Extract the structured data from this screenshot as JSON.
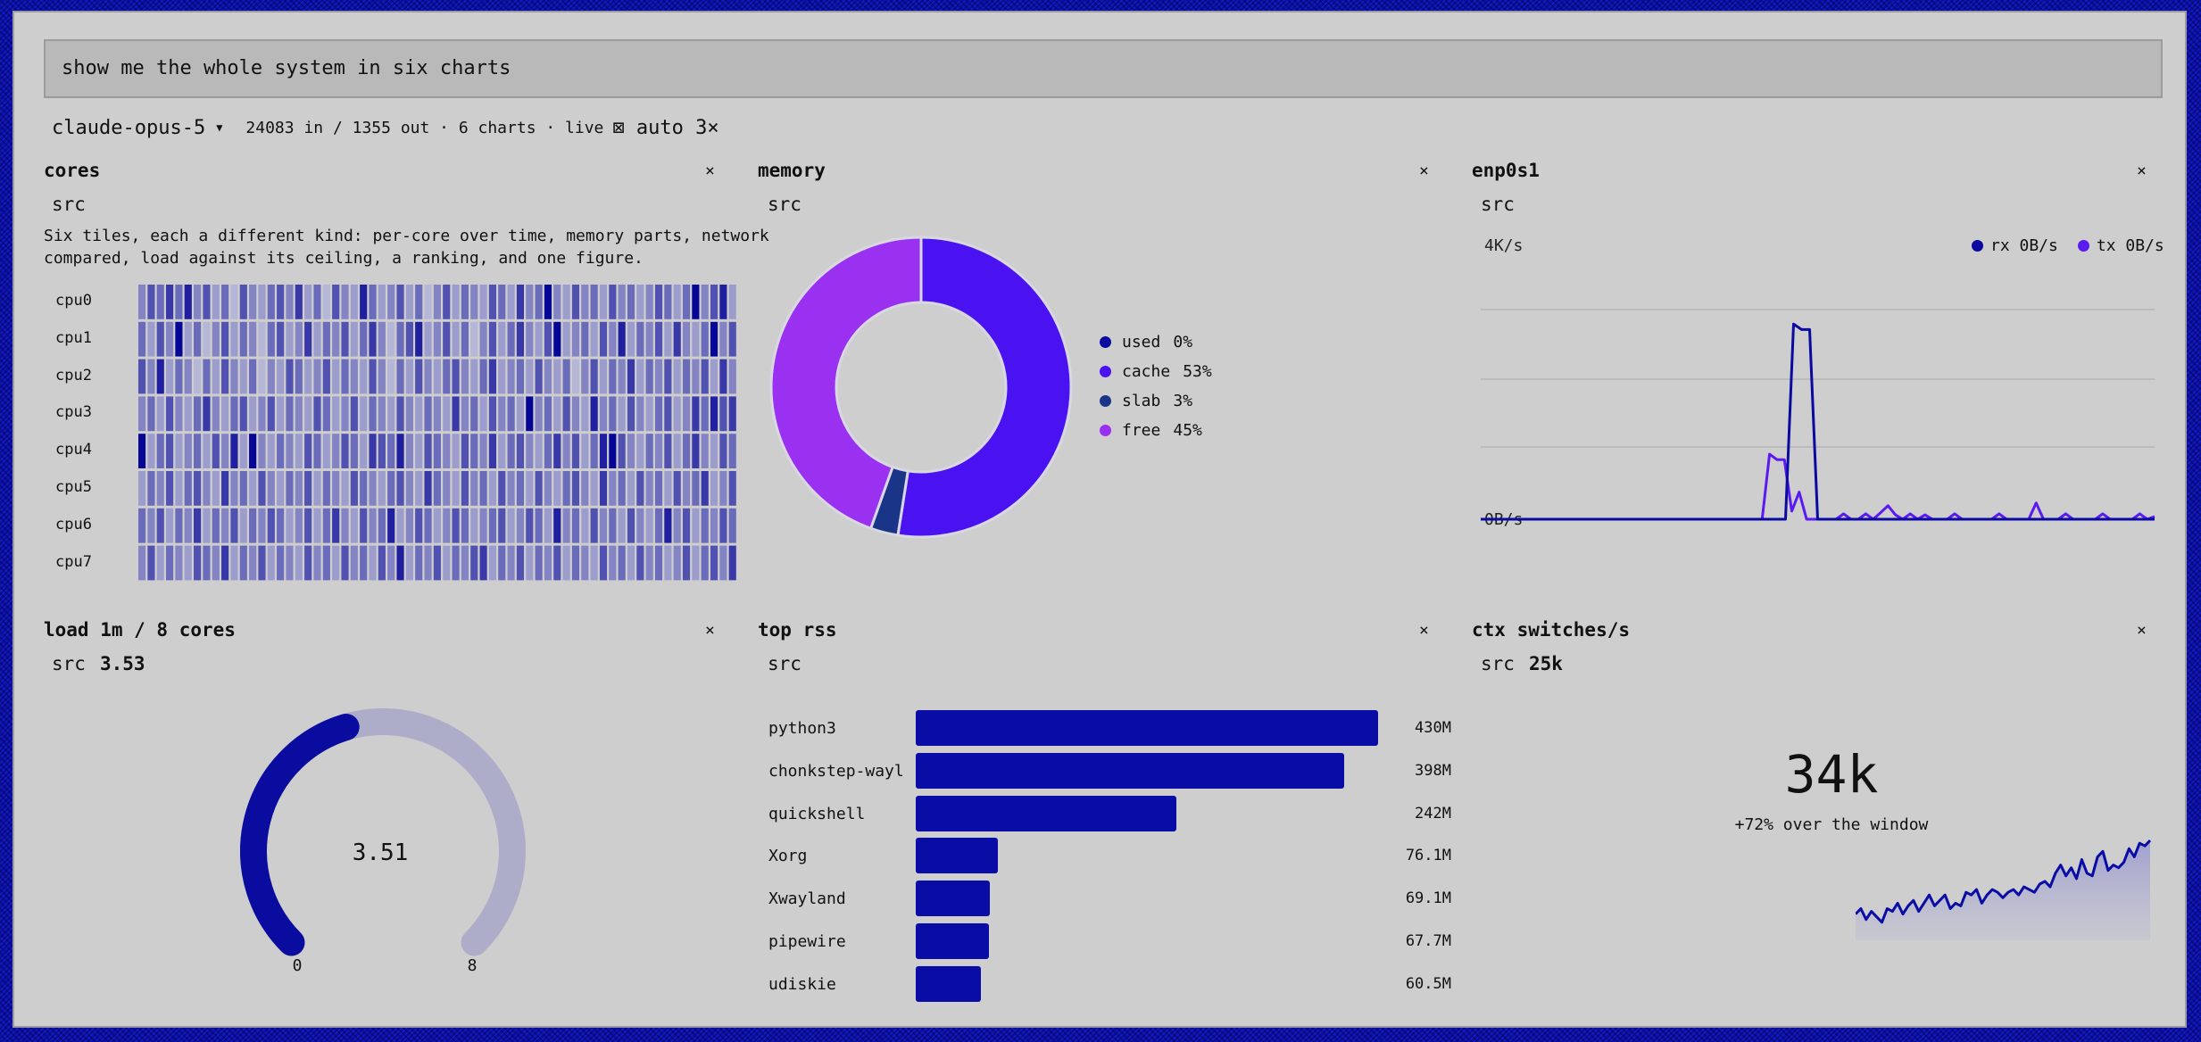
{
  "prompt": {
    "text": "show me the whole system in six charts"
  },
  "status": {
    "model": "claude-opus-5",
    "stats": "24083 in / 1355 out · 6 charts · live",
    "auto_label": "⊠ auto 3×"
  },
  "tiles": {
    "cores": {
      "title": "cores",
      "src": "src",
      "close": "×",
      "description": "Six tiles, each a different kind: per-core over time, memory parts, network compared, load against its ceiling, a ranking, and one figure.",
      "cpus": [
        "cpu0",
        "cpu1",
        "cpu2",
        "cpu3",
        "cpu4",
        "cpu5",
        "cpu6",
        "cpu7"
      ]
    },
    "memory": {
      "title": "memory",
      "src": "src",
      "close": "×",
      "legend": [
        {
          "name": "used",
          "pct": "0%",
          "color": "#0a0aa0"
        },
        {
          "name": "cache",
          "pct": "53%",
          "color": "#4a12f0"
        },
        {
          "name": "slab",
          "pct": "3%",
          "color": "#1a3488"
        },
        {
          "name": "free",
          "pct": "45%",
          "color": "#9a30f0"
        }
      ]
    },
    "network": {
      "title": "enp0s1",
      "src": "src",
      "close": "×",
      "y_top_label": "4K/s",
      "y_bottom_label": "0B/s",
      "legend": [
        {
          "name": "rx 0B/s",
          "color": "#0a0aa0"
        },
        {
          "name": "tx 0B/s",
          "color": "#5a1af0"
        }
      ]
    },
    "load": {
      "title": "load 1m / 8 cores",
      "src": "src",
      "src_value": "3.53",
      "close": "×",
      "gauge_value_label": "3.51",
      "min_label": "0",
      "max_label": "8"
    },
    "rss": {
      "title": "top rss",
      "src": "src",
      "close": "×",
      "processes": [
        {
          "name": "python3",
          "value_label": "430M"
        },
        {
          "name": "chonkstep-wayl",
          "value_label": "398M"
        },
        {
          "name": "quickshell",
          "value_label": "242M"
        },
        {
          "name": "Xorg",
          "value_label": "76.1M"
        },
        {
          "name": "Xwayland",
          "value_label": "69.1M"
        },
        {
          "name": "pipewire",
          "value_label": "67.7M"
        },
        {
          "name": "udiskie",
          "value_label": "60.5M"
        }
      ]
    },
    "ctx": {
      "title": "ctx switches/s",
      "src": "src",
      "src_value": "25k",
      "close": "×",
      "big_value": "34k",
      "subtitle": "+72% over the window"
    }
  },
  "chart_data": [
    {
      "type": "heatmap",
      "rows": [
        "cpu0",
        "cpu1",
        "cpu2",
        "cpu3",
        "cpu4",
        "cpu5",
        "cpu6",
        "cpu7"
      ],
      "values": [
        [
          0.4,
          0.6,
          0.5,
          0.7,
          0.5,
          0.8,
          0.4,
          0.6,
          0.3,
          0.5,
          0.2,
          0.6,
          0.4,
          0.3,
          0.5,
          0.6,
          0.4,
          0.7,
          0.3,
          0.5,
          0.2,
          0.6,
          0.4,
          0.3,
          0.8,
          0.5,
          0.3,
          0.4,
          0.6,
          0.3,
          0.5,
          0.2,
          0.4,
          0.6,
          0.3,
          0.5,
          0.4,
          0.3,
          0.6,
          0.5,
          0.3,
          0.7,
          0.4,
          0.5,
          0.9,
          0.4,
          0.3,
          0.6,
          0.4,
          0.5,
          0.3,
          0.6,
          0.4,
          0.5,
          0.3,
          0.4,
          0.6,
          0.5,
          0.3,
          0.5,
          0.9,
          0.4,
          0.6,
          0.8,
          0.3
        ],
        [
          0.5,
          0.3,
          0.6,
          0.4,
          0.9,
          0.3,
          0.5,
          0.2,
          0.4,
          0.6,
          0.3,
          0.5,
          0.4,
          0.2,
          0.5,
          0.6,
          0.3,
          0.4,
          0.7,
          0.3,
          0.5,
          0.4,
          0.6,
          0.3,
          0.5,
          0.7,
          0.4,
          0.2,
          0.5,
          0.6,
          0.8,
          0.3,
          0.4,
          0.6,
          0.3,
          0.5,
          0.2,
          0.4,
          0.6,
          0.3,
          0.5,
          0.7,
          0.4,
          0.3,
          0.6,
          0.9,
          0.3,
          0.4,
          0.5,
          0.3,
          0.6,
          0.4,
          0.8,
          0.3,
          0.5,
          0.4,
          0.6,
          0.3,
          0.7,
          0.4,
          0.3,
          0.5,
          0.9,
          0.4,
          0.6
        ],
        [
          0.6,
          0.4,
          0.8,
          0.3,
          0.5,
          0.4,
          0.2,
          0.5,
          0.3,
          0.6,
          0.4,
          0.3,
          0.5,
          0.2,
          0.4,
          0.3,
          0.6,
          0.5,
          0.3,
          0.4,
          0.6,
          0.3,
          0.5,
          0.4,
          0.3,
          0.6,
          0.4,
          0.2,
          0.5,
          0.3,
          0.6,
          0.4,
          0.3,
          0.5,
          0.6,
          0.4,
          0.3,
          0.5,
          0.7,
          0.3,
          0.4,
          0.5,
          0.3,
          0.6,
          0.4,
          0.3,
          0.5,
          0.2,
          0.4,
          0.6,
          0.3,
          0.5,
          0.4,
          0.7,
          0.3,
          0.5,
          0.4,
          0.6,
          0.3,
          0.5,
          0.4,
          0.6,
          0.3,
          0.7,
          0.4
        ],
        [
          0.4,
          0.5,
          0.3,
          0.6,
          0.4,
          0.3,
          0.5,
          0.7,
          0.4,
          0.3,
          0.5,
          0.6,
          0.3,
          0.4,
          0.6,
          0.3,
          0.5,
          0.4,
          0.3,
          0.6,
          0.5,
          0.3,
          0.4,
          0.6,
          0.3,
          0.5,
          0.4,
          0.3,
          0.6,
          0.4,
          0.3,
          0.5,
          0.4,
          0.3,
          0.7,
          0.4,
          0.5,
          0.3,
          0.6,
          0.4,
          0.5,
          0.3,
          0.9,
          0.4,
          0.5,
          0.3,
          0.6,
          0.4,
          0.3,
          0.8,
          0.4,
          0.5,
          0.3,
          0.6,
          0.4,
          0.3,
          0.5,
          0.6,
          0.3,
          0.4,
          0.7,
          0.5,
          0.8,
          0.6,
          0.7
        ],
        [
          0.9,
          0.3,
          0.5,
          0.6,
          0.3,
          0.4,
          0.5,
          0.3,
          0.6,
          0.4,
          0.8,
          0.3,
          0.9,
          0.4,
          0.3,
          0.5,
          0.4,
          0.3,
          0.6,
          0.5,
          0.3,
          0.4,
          0.6,
          0.5,
          0.3,
          0.7,
          0.6,
          0.5,
          0.8,
          0.4,
          0.3,
          0.6,
          0.5,
          0.4,
          0.3,
          0.6,
          0.5,
          0.4,
          0.7,
          0.3,
          0.5,
          0.6,
          0.4,
          0.3,
          0.5,
          0.7,
          0.4,
          0.6,
          0.3,
          0.5,
          0.8,
          0.9,
          0.6,
          0.4,
          0.3,
          0.5,
          0.4,
          0.6,
          0.3,
          0.5,
          0.7,
          0.4,
          0.3,
          0.6,
          0.5
        ],
        [
          0.3,
          0.5,
          0.4,
          0.6,
          0.3,
          0.5,
          0.6,
          0.4,
          0.3,
          0.7,
          0.4,
          0.5,
          0.3,
          0.6,
          0.4,
          0.3,
          0.5,
          0.4,
          0.6,
          0.3,
          0.5,
          0.4,
          0.3,
          0.6,
          0.5,
          0.4,
          0.3,
          0.5,
          0.6,
          0.4,
          0.3,
          0.7,
          0.5,
          0.4,
          0.3,
          0.6,
          0.4,
          0.5,
          0.3,
          0.6,
          0.4,
          0.5,
          0.3,
          0.6,
          0.4,
          0.3,
          0.5,
          0.6,
          0.4,
          0.3,
          0.7,
          0.4,
          0.5,
          0.3,
          0.6,
          0.4,
          0.5,
          0.3,
          0.6,
          0.4,
          0.5,
          0.7,
          0.3,
          0.4,
          0.6
        ],
        [
          0.5,
          0.4,
          0.6,
          0.3,
          0.5,
          0.4,
          0.7,
          0.3,
          0.5,
          0.4,
          0.6,
          0.3,
          0.5,
          0.4,
          0.6,
          0.5,
          0.3,
          0.4,
          0.6,
          0.3,
          0.5,
          0.7,
          0.4,
          0.3,
          0.6,
          0.4,
          0.5,
          0.8,
          0.3,
          0.4,
          0.6,
          0.5,
          0.3,
          0.4,
          0.6,
          0.5,
          0.3,
          0.4,
          0.5,
          0.6,
          0.3,
          0.4,
          0.6,
          0.5,
          0.3,
          0.8,
          0.4,
          0.5,
          0.3,
          0.6,
          0.4,
          0.5,
          0.3,
          0.6,
          0.4,
          0.3,
          0.5,
          0.8,
          0.4,
          0.6,
          0.3,
          0.5,
          0.4,
          0.6,
          0.5
        ],
        [
          0.4,
          0.6,
          0.3,
          0.5,
          0.4,
          0.3,
          0.6,
          0.5,
          0.4,
          0.7,
          0.3,
          0.5,
          0.4,
          0.6,
          0.3,
          0.5,
          0.4,
          0.3,
          0.6,
          0.4,
          0.5,
          0.3,
          0.6,
          0.4,
          0.5,
          0.3,
          0.6,
          0.4,
          0.8,
          0.3,
          0.5,
          0.4,
          0.6,
          0.3,
          0.5,
          0.4,
          0.6,
          0.7,
          0.3,
          0.5,
          0.4,
          0.6,
          0.3,
          0.5,
          0.4,
          0.6,
          0.3,
          0.5,
          0.4,
          0.3,
          0.6,
          0.4,
          0.5,
          0.3,
          0.6,
          0.4,
          0.5,
          0.3,
          0.4,
          0.6,
          0.3,
          0.5,
          0.6,
          0.4,
          0.7
        ]
      ]
    },
    {
      "type": "pie",
      "labels": [
        "used",
        "cache",
        "slab",
        "free"
      ],
      "values": [
        0,
        53,
        3,
        45
      ]
    },
    {
      "type": "line",
      "ylim": [
        0,
        4000
      ],
      "series": [
        {
          "name": "rx 0B/s",
          "values": [
            0,
            0,
            0,
            0,
            0,
            0,
            0,
            0,
            0,
            0,
            0,
            0,
            0,
            0,
            0,
            0,
            0,
            0,
            0,
            0,
            0,
            0,
            0,
            0,
            0,
            0,
            0,
            0,
            0,
            0,
            0,
            0,
            0,
            0,
            0,
            0,
            0,
            0,
            0,
            3600,
            3500,
            3500,
            0,
            0,
            0,
            0,
            0,
            0,
            0,
            0,
            0,
            0,
            0,
            0,
            0,
            0,
            0,
            0,
            0,
            0,
            0,
            0,
            0,
            0,
            0,
            0,
            0,
            0,
            0,
            0,
            0,
            0,
            0,
            0,
            0,
            0,
            0,
            0,
            0,
            0,
            0,
            0,
            0,
            0,
            0
          ]
        },
        {
          "name": "tx 0B/s",
          "values": [
            0,
            0,
            0,
            0,
            0,
            0,
            0,
            0,
            0,
            0,
            0,
            0,
            0,
            0,
            0,
            0,
            0,
            0,
            0,
            0,
            0,
            0,
            0,
            0,
            0,
            0,
            0,
            0,
            0,
            0,
            0,
            0,
            0,
            0,
            0,
            0,
            0,
            0,
            0,
            1200,
            1100,
            1100,
            150,
            500,
            0,
            0,
            0,
            0,
            0,
            100,
            0,
            0,
            100,
            0,
            120,
            250,
            80,
            0,
            100,
            0,
            80,
            0,
            0,
            0,
            100,
            0,
            0,
            0,
            0,
            0,
            100,
            0,
            0,
            0,
            0,
            300,
            0,
            0,
            0,
            100,
            0,
            0,
            0,
            0,
            100,
            0,
            0,
            0,
            0,
            100,
            0,
            50
          ]
        }
      ]
    },
    {
      "type": "gauge",
      "value": 3.51,
      "min": 0,
      "max": 8
    },
    {
      "type": "bar",
      "categories": [
        "python3",
        "chonkstep-wayl",
        "quickshell",
        "Xorg",
        "Xwayland",
        "pipewire",
        "udiskie"
      ],
      "values": [
        430,
        398,
        242,
        76.1,
        69.1,
        67.7,
        60.5
      ]
    },
    {
      "type": "area",
      "values": [
        26,
        28,
        24,
        27,
        25,
        23,
        28,
        27,
        30,
        26,
        29,
        31,
        27,
        30,
        33,
        29,
        31,
        33,
        28,
        30,
        29,
        34,
        33,
        35,
        30,
        33,
        35,
        34,
        32,
        34,
        35,
        33,
        36,
        35,
        34,
        37,
        38,
        36,
        41,
        44,
        40,
        43,
        39,
        46,
        41,
        40,
        47,
        49,
        42,
        44,
        43,
        45,
        50,
        47,
        52,
        51,
        53
      ]
    }
  ]
}
